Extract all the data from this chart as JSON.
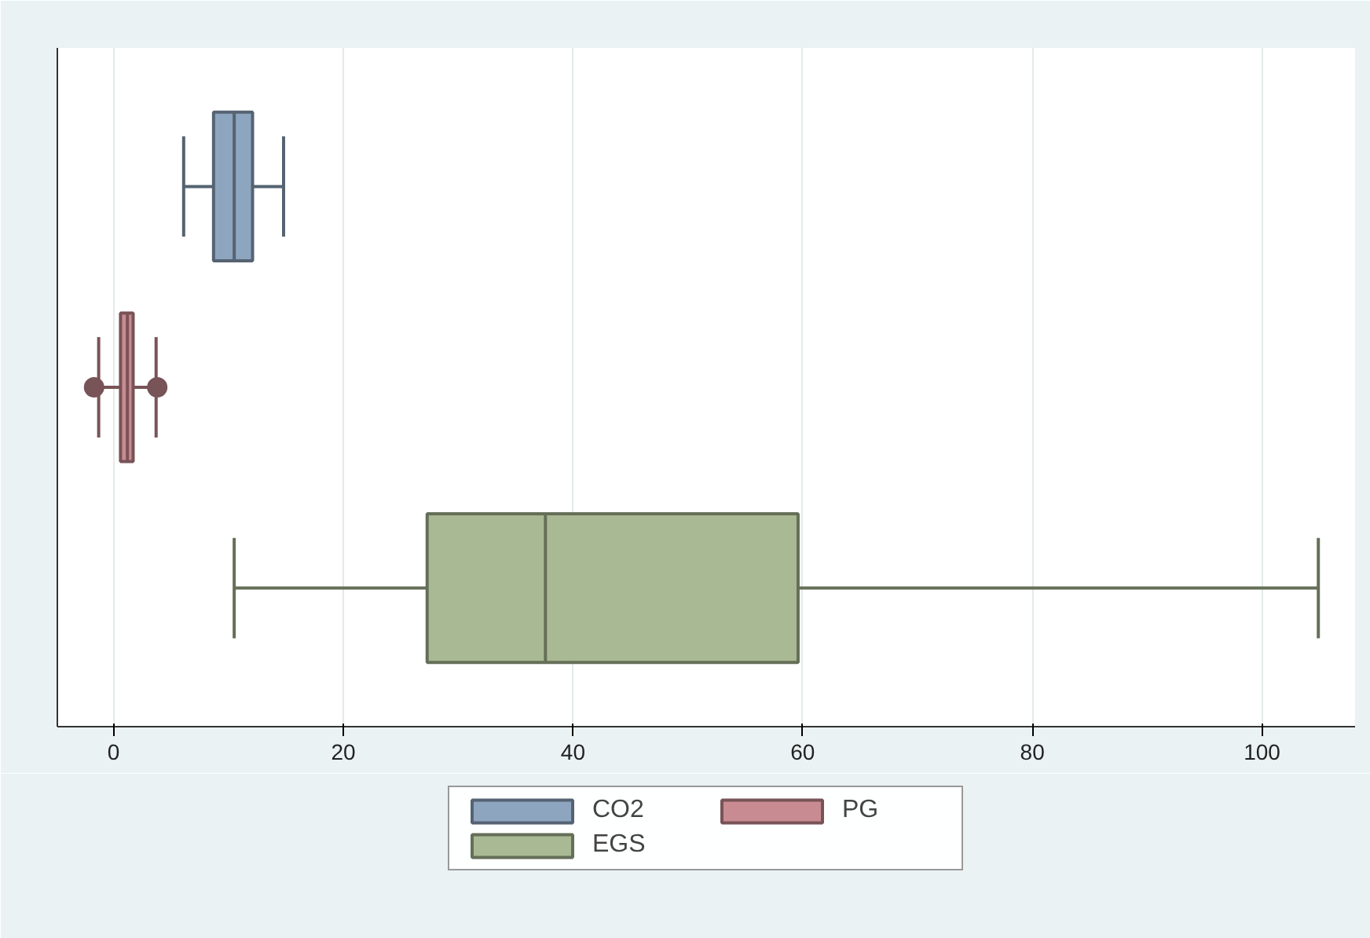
{
  "chart_data": {
    "type": "box",
    "orientation": "horizontal",
    "categories": [
      null
    ],
    "series": [
      {
        "name": "CO2",
        "color": "#8ea5bf",
        "boxes": [
          {
            "low": 6.1,
            "q1": 8.7,
            "median": 10.5,
            "q3": 12.1,
            "high": 14.8
          }
        ]
      },
      {
        "name": "PG",
        "color": "#c98b92",
        "boxes": [
          {
            "low": -1.3,
            "q1": 0.6,
            "median": 1.2,
            "q3": 1.7,
            "high": 3.7,
            "outliers": [
              -1.7,
              3.8
            ]
          }
        ]
      },
      {
        "name": "EGS",
        "color": "#a9b994",
        "boxes": [
          {
            "low": 10.5,
            "q1": 27.3,
            "median": 37.6,
            "q3": 59.6,
            "high": 104.9
          }
        ]
      }
    ],
    "xlim": [
      -4.9,
      108.1
    ],
    "xticks": [
      0,
      20,
      40,
      60,
      80,
      100
    ],
    "grid": "x",
    "legend": "bottom",
    "tick_labels": "x"
  }
}
